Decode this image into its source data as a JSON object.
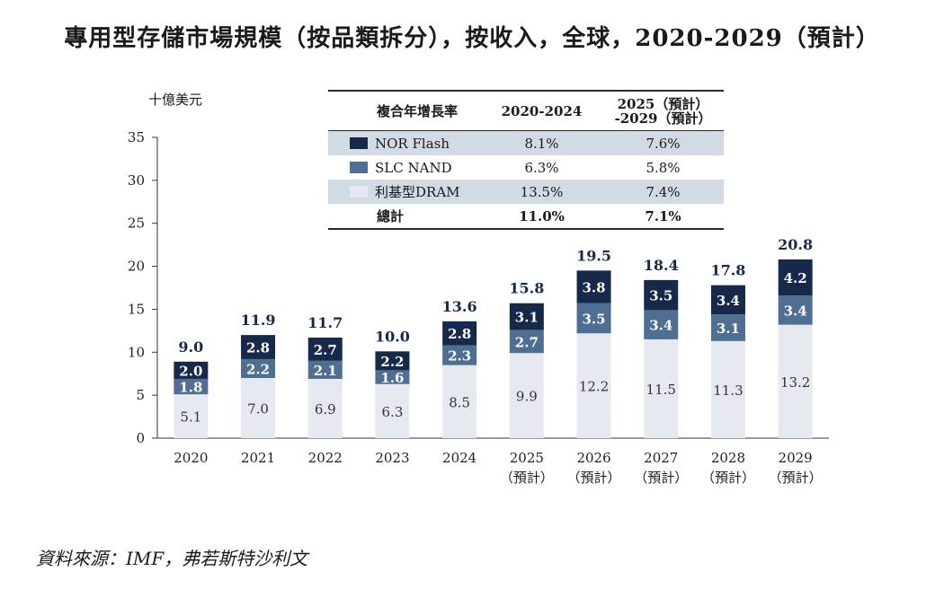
{
  "title_prefix": "專用型存儲市場規模（按品類拆分），按收入，全球，",
  "title_years": "2020-2029",
  "title_suffix": "（預計）",
  "unit_label": "十億美元",
  "source": "資料來源：IMF，弗若斯特沙利文",
  "colors": {
    "nor": "#17294a",
    "slc": "#4f6f92",
    "dram": "#e6eaf0",
    "table_shade": "#d2dae3"
  },
  "table": {
    "header": {
      "name": "複合年增長率",
      "col1": "2020-2024",
      "col2_line1": "2025（預計）",
      "col2_line2": "-2029（預計）"
    },
    "rows": [
      {
        "name": "NOR Flash",
        "cagr1": "8.1%",
        "cagr2": "7.6%"
      },
      {
        "name": "SLC NAND",
        "cagr1": "6.3%",
        "cagr2": "5.8%"
      },
      {
        "name": "利基型DRAM",
        "cagr1": "13.5%",
        "cagr2": "7.4%"
      }
    ],
    "total": {
      "name": "總計",
      "cagr1": "11.0%",
      "cagr2": "7.1%"
    }
  },
  "chart_data": {
    "type": "bar",
    "stacked": true,
    "title": "專用型存儲市場規模（按品類拆分），按收入，全球，2020-2029（預計）",
    "ylabel": "十億美元",
    "ylim": [
      0,
      35
    ],
    "yticks": [
      0,
      5,
      10,
      15,
      20,
      25,
      30,
      35
    ],
    "categories": [
      "2020",
      "2021",
      "2022",
      "2023",
      "2024",
      "2025",
      "2026",
      "2027",
      "2028",
      "2029"
    ],
    "category_notes": [
      "",
      "",
      "",
      "",
      "",
      "（預計）",
      "（預計）",
      "（預計）",
      "（預計）",
      "（預計）"
    ],
    "series": [
      {
        "name": "利基型DRAM",
        "values": [
          5.1,
          7.0,
          6.9,
          6.3,
          8.5,
          9.9,
          12.2,
          11.5,
          11.3,
          13.2
        ]
      },
      {
        "name": "SLC NAND",
        "values": [
          1.8,
          2.2,
          2.1,
          1.6,
          2.3,
          2.7,
          3.5,
          3.4,
          3.1,
          3.4
        ]
      },
      {
        "name": "NOR Flash",
        "values": [
          2.0,
          2.8,
          2.7,
          2.2,
          2.8,
          3.1,
          3.8,
          3.5,
          3.4,
          4.2
        ]
      }
    ],
    "totals": [
      9.0,
      11.9,
      11.7,
      10.0,
      13.6,
      15.8,
      19.5,
      18.4,
      17.8,
      20.8
    ]
  }
}
